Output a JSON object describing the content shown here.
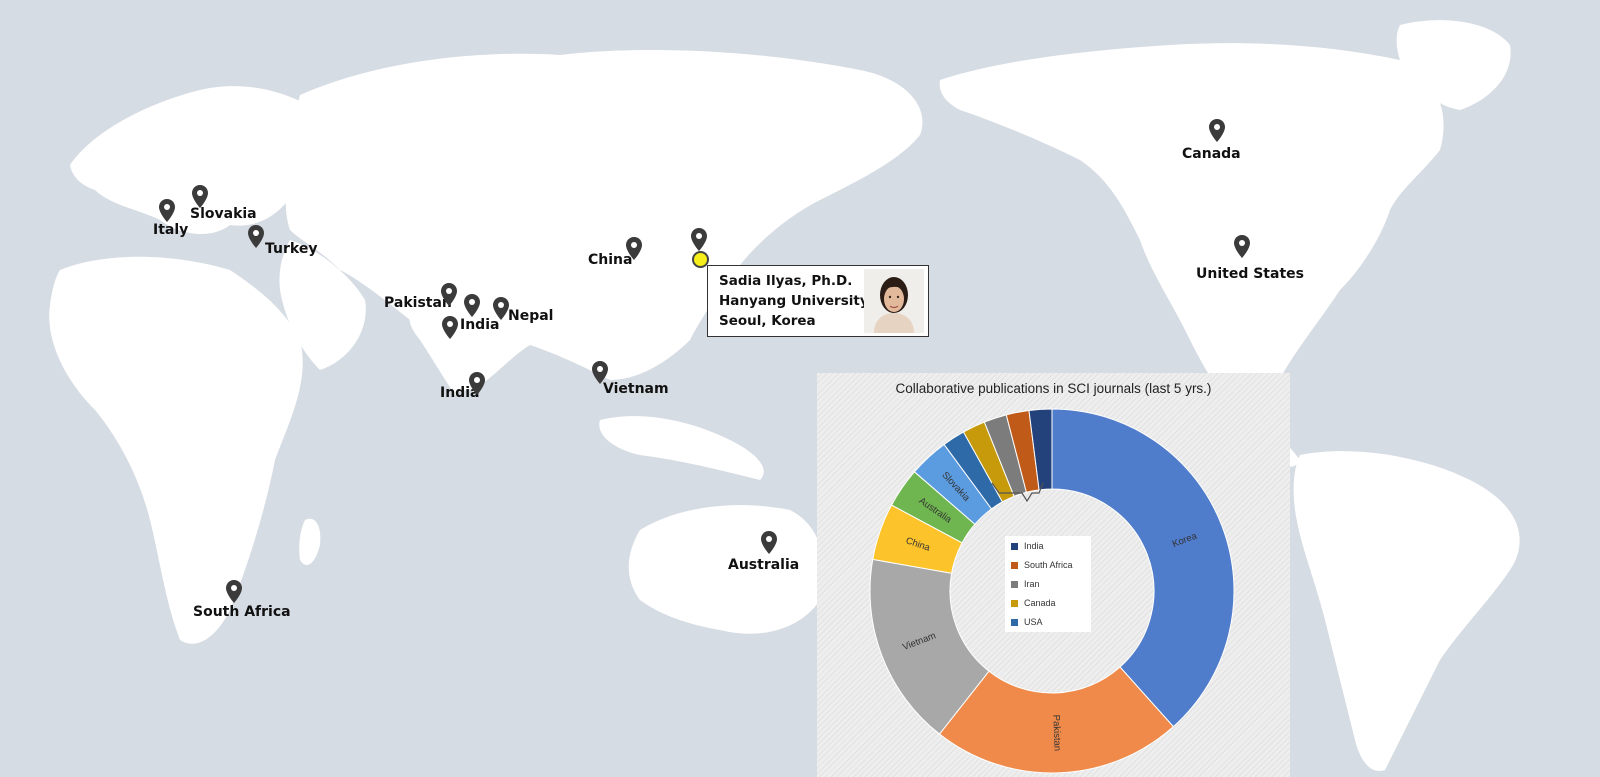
{
  "map": {
    "locations": [
      {
        "name": "Italy"
      },
      {
        "name": "Slovakia"
      },
      {
        "name": "Turkey"
      },
      {
        "name": "Pakistan"
      },
      {
        "name": "India"
      },
      {
        "name": "Nepal"
      },
      {
        "name": "India"
      },
      {
        "name": "China"
      },
      {
        "name": "Vietnam"
      },
      {
        "name": "Australia"
      },
      {
        "name": "South Africa"
      },
      {
        "name": "Canada"
      },
      {
        "name": "United States"
      }
    ],
    "home_pin_color": "#f6ef1a"
  },
  "profile": {
    "name": "Sadia Ilyas, Ph.D.",
    "institution": "Hanyang University",
    "location": "Seoul, Korea",
    "photo_icon": "person-portrait-icon"
  },
  "chart_data": {
    "type": "pie",
    "style": "donut",
    "title": "Collaborative publications in SCI journals (last 5 yrs.)",
    "slices": [
      {
        "label": "Korea",
        "value": 38,
        "color": "#4f7ccb"
      },
      {
        "label": "Pakistan",
        "value": 22,
        "color": "#ef8a4a"
      },
      {
        "label": "Vietnam",
        "value": 17,
        "color": "#a8a8a8"
      },
      {
        "label": "China",
        "value": 5,
        "color": "#fcc32b"
      },
      {
        "label": "Australia",
        "value": 3.5,
        "color": "#6fb650"
      },
      {
        "label": "Slovakia",
        "value": 3.5,
        "color": "#5b9be0"
      },
      {
        "label": "USA",
        "value": 2,
        "color": "#2f6aa8"
      },
      {
        "label": "Canada",
        "value": 2,
        "color": "#c79a0b"
      },
      {
        "label": "Iran",
        "value": 2,
        "color": "#7c7c7c"
      },
      {
        "label": "South Africa",
        "value": 2,
        "color": "#bf5a18"
      },
      {
        "label": "India",
        "value": 2,
        "color": "#23417a"
      }
    ],
    "inside_labels": [
      "Korea",
      "Pakistan",
      "Vietnam",
      "China",
      "Australia",
      "Slovakia"
    ],
    "legend": [
      {
        "label": "India",
        "color": "#23417a"
      },
      {
        "label": "South Africa",
        "color": "#bf5a18"
      },
      {
        "label": "Iran",
        "color": "#7c7c7c"
      },
      {
        "label": "Canada",
        "color": "#c79a0b"
      },
      {
        "label": "USA",
        "color": "#2f6aa8"
      }
    ]
  }
}
